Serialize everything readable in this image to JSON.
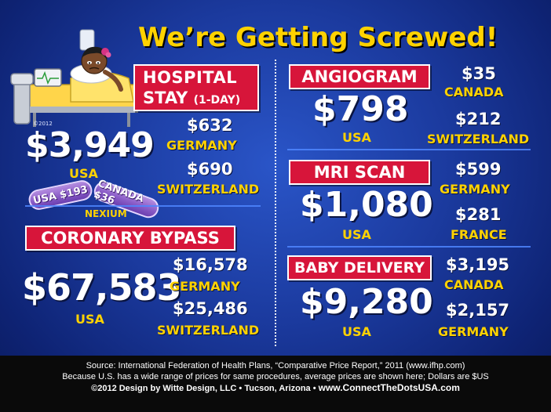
{
  "title": "We’re Getting Screwed!",
  "illustration_copyright": "©2012",
  "hospital": {
    "label_line1": "HOSPITAL",
    "label_line2_main": "STAY",
    "label_line2_sub": "(1-DAY)",
    "usa_price": "$3,949",
    "usa_label": "USA",
    "comparisons": [
      {
        "price": "$632",
        "country": "GERMANY"
      },
      {
        "price": "$690",
        "country": "SWITZERLAND"
      }
    ]
  },
  "nexium": {
    "pill_usa": "USA $193",
    "pill_canada": "CANADA $36",
    "label": "NEXIUM"
  },
  "coronary": {
    "label": "CORONARY BYPASS",
    "usa_price": "$67,583",
    "usa_label": "USA",
    "comparisons": [
      {
        "price": "$16,578",
        "country": "GERMANY"
      },
      {
        "price": "$25,486",
        "country": "SWITZERLAND"
      }
    ]
  },
  "angiogram": {
    "label": "ANGIOGRAM",
    "usa_price": "$798",
    "usa_label": "USA",
    "comparisons": [
      {
        "price": "$35",
        "country": "CANADA"
      },
      {
        "price": "$212",
        "country": "SWITZERLAND"
      }
    ]
  },
  "mri": {
    "label": "MRI SCAN",
    "usa_price": "$1,080",
    "usa_label": "USA",
    "comparisons": [
      {
        "price": "$599",
        "country": "GERMANY"
      },
      {
        "price": "$281",
        "country": "FRANCE"
      }
    ]
  },
  "baby": {
    "label": "BABY DELIVERY",
    "usa_price": "$9,280",
    "usa_label": "USA",
    "comparisons": [
      {
        "price": "$3,195",
        "country": "CANADA"
      },
      {
        "price": "$2,157",
        "country": "GERMANY"
      }
    ]
  },
  "footer": {
    "line1": "Source: International Federation of Health Plans, “Comparative Price Report,” 2011 (www.ifhp.com)",
    "line2": "Because U.S. has a wide range of prices for same procedures, average prices are shown here; Dollars are $US",
    "line3_credit": "©2012 Design by Witte Design, LLC • Tucson, Arizona • ",
    "line3_url": "www.ConnectTheDotsUSA.com"
  },
  "colors": {
    "background": "#1b3a9e",
    "title": "#ffd200",
    "label_bg": "#d7153a",
    "country": "#ffd200",
    "footer_bg": "#0a0a0a"
  }
}
